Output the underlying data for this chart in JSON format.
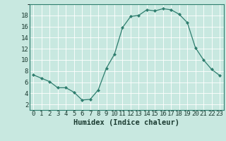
{
  "x": [
    0,
    1,
    2,
    3,
    4,
    5,
    6,
    7,
    8,
    9,
    10,
    11,
    12,
    13,
    14,
    15,
    16,
    17,
    18,
    19,
    20,
    21,
    22,
    23
  ],
  "y": [
    7.3,
    6.7,
    6.1,
    5.0,
    5.0,
    4.2,
    2.8,
    2.9,
    4.6,
    8.5,
    11.0,
    15.8,
    17.8,
    18.0,
    19.0,
    18.8,
    19.2,
    19.0,
    18.2,
    16.7,
    12.2,
    10.0,
    8.3,
    7.2
  ],
  "line_color": "#2e7d6e",
  "marker": "D",
  "marker_size": 2.0,
  "bg_color": "#c8e8e0",
  "grid_color": "#b0d8d0",
  "xlabel": "Humidex (Indice chaleur)",
  "xlim": [
    -0.5,
    23.5
  ],
  "ylim": [
    1.0,
    20.0
  ],
  "yticks": [
    2,
    4,
    6,
    8,
    10,
    12,
    14,
    16,
    18
  ],
  "xtick_labels": [
    "0",
    "1",
    "2",
    "3",
    "4",
    "5",
    "6",
    "7",
    "8",
    "9",
    "10",
    "11",
    "12",
    "13",
    "14",
    "15",
    "16",
    "17",
    "18",
    "19",
    "20",
    "21",
    "22",
    "23"
  ],
  "xlabel_fontsize": 7.5,
  "tick_fontsize": 6.5
}
